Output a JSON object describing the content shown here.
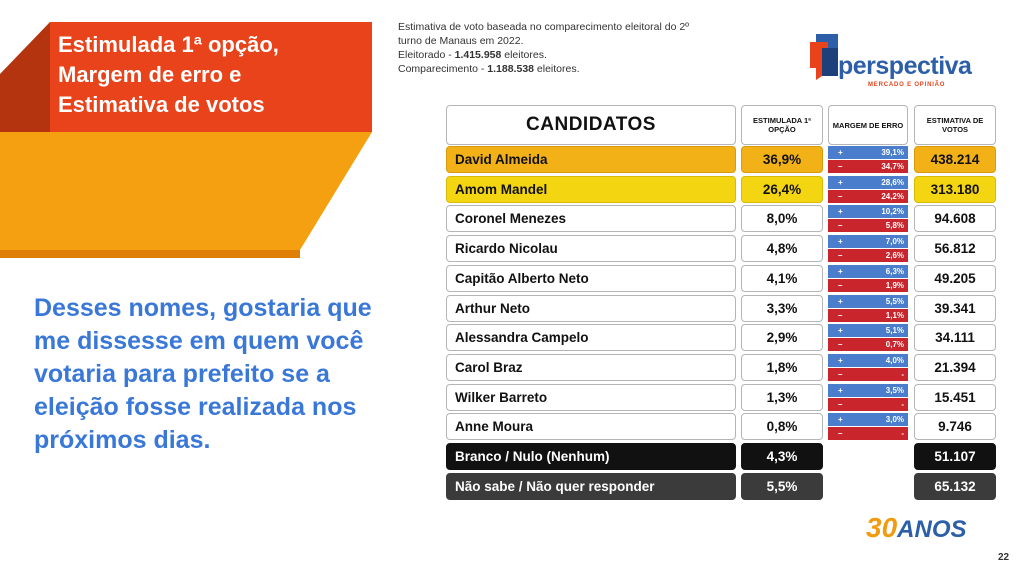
{
  "slide": {
    "title_lines": [
      "Estimulada 1ª opção,",
      "Margem de erro e",
      "Estimativa de votos"
    ],
    "question": "Desses nomes, gostaria que me dissesse em quem você votaria para prefeito se a eleição fosse realizada nos próximos dias.",
    "info": {
      "line1": "Estimativa de voto baseada no comparecimento eleitoral do 2º turno de Manaus em 2022.",
      "eleitorado_label": "Eleitorado - ",
      "eleitorado_value": "1.415.958",
      "eleitorado_suffix": " eleitores.",
      "comparecimento_label": "Comparecimento - ",
      "comparecimento_value": "1.188.538",
      "comparecimento_suffix": " eleitores."
    },
    "page_number": "22"
  },
  "logo": {
    "name": "perspectiva",
    "tagline": "MERCADO E OPINIÃO",
    "badge_number": "30",
    "badge_text": "ANOS",
    "colors": {
      "blue": "#2d5fa8",
      "orange": "#e8431a"
    }
  },
  "table": {
    "headers": {
      "candidates": "CANDIDATOS",
      "stimulated": "ESTIMULADA 1ª OPÇÃO",
      "margin": "MARGEM DE ERRO",
      "estimate": "ESTIMATIVA DE VOTOS"
    },
    "rows": [
      {
        "name": "David Almeida",
        "pct": "36,9%",
        "plus": "39,1%",
        "minus": "34,7%",
        "votes": "438.214",
        "style": "gold"
      },
      {
        "name": "Amom Mandel",
        "pct": "26,4%",
        "plus": "28,6%",
        "minus": "24,2%",
        "votes": "313.180",
        "style": "yellow"
      },
      {
        "name": "Coronel Menezes",
        "pct": "8,0%",
        "plus": "10,2%",
        "minus": "5,8%",
        "votes": "94.608",
        "style": ""
      },
      {
        "name": "Ricardo Nicolau",
        "pct": "4,8%",
        "plus": "7,0%",
        "minus": "2,6%",
        "votes": "56.812",
        "style": ""
      },
      {
        "name": "Capitão Alberto Neto",
        "pct": "4,1%",
        "plus": "6,3%",
        "minus": "1,9%",
        "votes": "49.205",
        "style": ""
      },
      {
        "name": "Arthur Neto",
        "pct": "3,3%",
        "plus": "5,5%",
        "minus": "1,1%",
        "votes": "39.341",
        "style": ""
      },
      {
        "name": "Alessandra Campelo",
        "pct": "2,9%",
        "plus": "5,1%",
        "minus": "0,7%",
        "votes": "34.111",
        "style": ""
      },
      {
        "name": "Carol Braz",
        "pct": "1,8%",
        "plus": "4,0%",
        "minus": "-",
        "votes": "21.394",
        "style": ""
      },
      {
        "name": "Wilker Barreto",
        "pct": "1,3%",
        "plus": "3,5%",
        "minus": "-",
        "votes": "15.451",
        "style": ""
      },
      {
        "name": "Anne Moura",
        "pct": "0,8%",
        "plus": "3,0%",
        "minus": "-",
        "votes": "9.746",
        "style": ""
      },
      {
        "name": "Branco / Nulo (Nenhum)",
        "pct": "4,3%",
        "plus": "",
        "minus": "",
        "votes": "51.107",
        "style": "black"
      },
      {
        "name": "Não sabe / Não quer responder",
        "pct": "5,5%",
        "plus": "",
        "minus": "",
        "votes": "65.132",
        "style": "dgray"
      }
    ],
    "plus_sign": "+",
    "minus_sign": "–"
  }
}
